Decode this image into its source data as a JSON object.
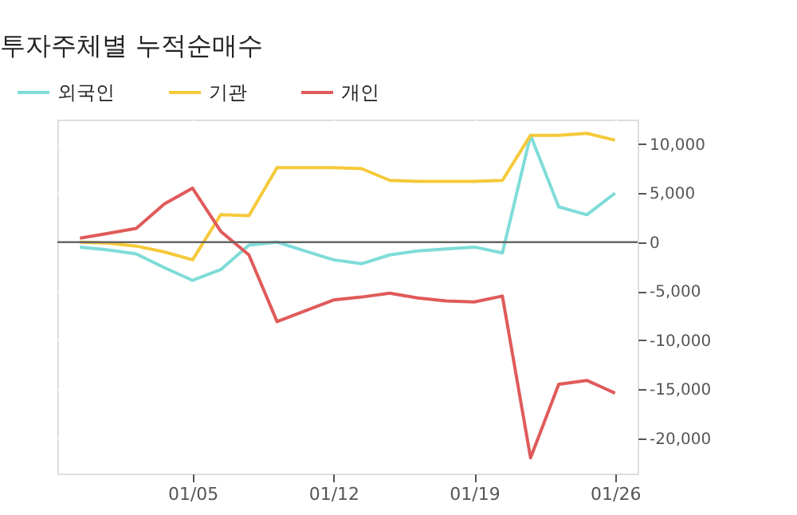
{
  "chart_data": {
    "type": "line",
    "title": "투자주체별 누적순매수",
    "categories": [
      null,
      null,
      null,
      null,
      "01/05",
      null,
      null,
      null,
      null,
      "01/12",
      null,
      null,
      null,
      null,
      "01/19",
      null,
      null,
      null,
      null,
      "01/26"
    ],
    "series": [
      {
        "name": "외국인",
        "color": "#7fdcd8",
        "values": [
          -500,
          -800,
          -1200,
          -2600,
          -3900,
          -2800,
          -300,
          0,
          -900,
          -1800,
          -2200,
          -1300,
          -900,
          -700,
          -500,
          -1100,
          10900,
          3600,
          2800,
          5000
        ]
      },
      {
        "name": "기관",
        "color": "#f5c93a",
        "values": [
          0,
          -100,
          -400,
          -1000,
          -1800,
          2800,
          2700,
          7600,
          7600,
          7600,
          7500,
          6300,
          6200,
          6200,
          6200,
          6300,
          10900,
          10900,
          11100,
          10400
        ]
      },
      {
        "name": "개인",
        "color": "#e05a5a",
        "values": [
          400,
          900,
          1400,
          3900,
          5500,
          1100,
          -1300,
          -8100,
          -7000,
          -5900,
          -5600,
          -5200,
          -5700,
          -6000,
          -6100,
          -5500,
          -22000,
          -14500,
          -14100,
          -15400
        ]
      }
    ],
    "ylim": [
      -23600,
      12500
    ],
    "yticks": [
      {
        "value": -20000,
        "label": "-20,000"
      },
      {
        "value": -15000,
        "label": "-15,000"
      },
      {
        "value": -10000,
        "label": "-10,000"
      },
      {
        "value": -5000,
        "label": "-5,000"
      },
      0,
      {
        "value": 5000,
        "label": "5,000"
      },
      {
        "value": 10000,
        "label": "10,000"
      }
    ],
    "ref_lines": [
      {
        "axis": "y",
        "value": 0,
        "color": "#666666"
      }
    ],
    "grid": true,
    "legend": "top left",
    "line_style": "solid",
    "marker": "none"
  }
}
